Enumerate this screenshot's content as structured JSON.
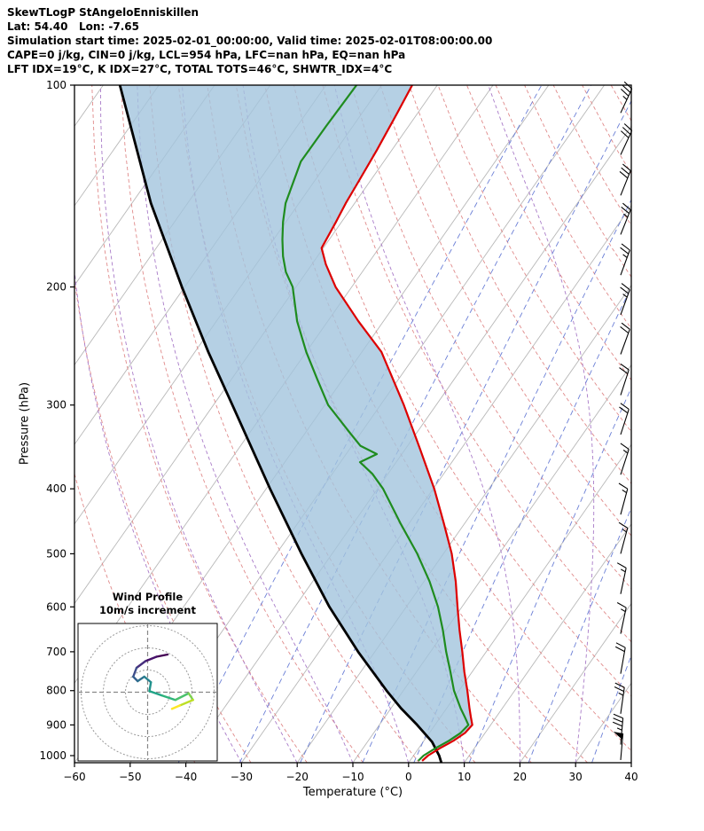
{
  "header": {
    "lines": [
      "SkewTLogP StAngeloEnniskillen",
      "Lat: 54.40   Lon: -7.65",
      "Simulation start time: 2025-02-01_00:00:00, Valid time: 2025-02-01T08:00:00.00",
      "CAPE=0 j/kg, CIN=0 j/kg, LCL=954 hPa, LFC=nan hPa, EQ=nan hPa",
      "LFT IDX=19°C, K IDX=27°C, TOTAL TOTS=46°C, SHWTR_IDX=4°C"
    ]
  },
  "chart_data": {
    "type": "line",
    "subtype": "skewt_logp_sounding",
    "title": "SkewTLogP StAngeloEnniskillen",
    "xlabel": "Temperature (°C)",
    "ylabel": "Pressure (hPa)",
    "xlim": [
      -60,
      40
    ],
    "ylim_hpa": [
      1025,
      100
    ],
    "x_ticks": [
      -60,
      -50,
      -40,
      -30,
      -20,
      -10,
      0,
      10,
      20,
      30,
      40
    ],
    "x_tick_labels": [
      "−60",
      "−50",
      "−40",
      "−30",
      "−20",
      "−10",
      "0",
      "10",
      "20",
      "30",
      "40"
    ],
    "y_ticks": [
      100,
      200,
      300,
      400,
      500,
      600,
      700,
      800,
      900,
      1000
    ],
    "series": [
      {
        "name": "temperature",
        "color": "#dd0000",
        "points_p_t": [
          [
            1018,
            2.2
          ],
          [
            1000,
            2.6
          ],
          [
            975,
            3.8
          ],
          [
            950,
            5.3
          ],
          [
            925,
            6.4
          ],
          [
            900,
            6.7
          ],
          [
            875,
            5.4
          ],
          [
            850,
            4.1
          ],
          [
            800,
            1.5
          ],
          [
            750,
            -1.4
          ],
          [
            700,
            -4.3
          ],
          [
            650,
            -7.5
          ],
          [
            600,
            -10.8
          ],
          [
            550,
            -14.3
          ],
          [
            500,
            -18.5
          ],
          [
            450,
            -23.8
          ],
          [
            400,
            -29.8
          ],
          [
            350,
            -37.2
          ],
          [
            300,
            -45.8
          ],
          [
            250,
            -56.5
          ],
          [
            225,
            -64.5
          ],
          [
            200,
            -72.9
          ],
          [
            185,
            -77.5
          ],
          [
            175,
            -80.3
          ],
          [
            160,
            -81.0
          ],
          [
            150,
            -81.6
          ],
          [
            140,
            -82.0
          ],
          [
            125,
            -82.7
          ],
          [
            110,
            -83.7
          ],
          [
            100,
            -84.5
          ]
        ]
      },
      {
        "name": "dewpoint",
        "color": "#1f8c1f",
        "points_p_t": [
          [
            1018,
            1.5
          ],
          [
            1000,
            1.8
          ],
          [
            975,
            3.0
          ],
          [
            950,
            4.5
          ],
          [
            925,
            5.6
          ],
          [
            900,
            6.0
          ],
          [
            875,
            4.3
          ],
          [
            850,
            2.5
          ],
          [
            800,
            -0.9
          ],
          [
            750,
            -3.9
          ],
          [
            700,
            -7.2
          ],
          [
            650,
            -10.5
          ],
          [
            600,
            -14.3
          ],
          [
            550,
            -19.0
          ],
          [
            500,
            -24.7
          ],
          [
            450,
            -31.6
          ],
          [
            400,
            -39.0
          ],
          [
            380,
            -42.8
          ],
          [
            365,
            -46.5
          ],
          [
            355,
            -44.5
          ],
          [
            345,
            -48.5
          ],
          [
            330,
            -52.0
          ],
          [
            300,
            -59.4
          ],
          [
            275,
            -64.5
          ],
          [
            250,
            -70.0
          ],
          [
            225,
            -75.5
          ],
          [
            200,
            -80.6
          ],
          [
            190,
            -83.7
          ],
          [
            180,
            -86.2
          ],
          [
            170,
            -88.4
          ],
          [
            160,
            -90.5
          ],
          [
            150,
            -92.4
          ],
          [
            130,
            -94.9
          ],
          [
            115,
            -94.8
          ],
          [
            100,
            -94.5
          ]
        ]
      },
      {
        "name": "parcel",
        "color": "#000000",
        "points_p_t": [
          [
            1025,
            5.9
          ],
          [
            1000,
            4.6
          ],
          [
            954,
            1.6
          ],
          [
            900,
            -3.2
          ],
          [
            850,
            -8.2
          ],
          [
            800,
            -13.0
          ],
          [
            700,
            -23.0
          ],
          [
            600,
            -33.8
          ],
          [
            500,
            -45.5
          ],
          [
            400,
            -59.3
          ],
          [
            300,
            -76.6
          ],
          [
            250,
            -87.6
          ],
          [
            200,
            -100.5
          ],
          [
            150,
            -116.6
          ],
          [
            100,
            -137.0
          ]
        ]
      }
    ],
    "shaded_area": {
      "between": [
        "parcel",
        "temperature"
      ],
      "from_hpa": 982,
      "to_hpa": 100,
      "color": "#a2c4dd",
      "opacity": 0.8
    },
    "background": {
      "isotherms": {
        "color": "#b8b8b8",
        "min_c": -150,
        "max_c": 40,
        "step_c": 10
      },
      "dry_adiabats": {
        "color": "#e08a8a",
        "dash": [
          4,
          3
        ],
        "theta_min_c": -40,
        "theta_max_c": 200,
        "step_c": 10
      },
      "moist_adiabats": {
        "color": "#a97bc8",
        "dash": [
          4,
          3
        ],
        "t0_min_c": -30,
        "t0_max_c": 30,
        "step_c": 10
      },
      "mixing_ratio": {
        "color": "#6b7fd6",
        "dash": [
          6,
          4
        ],
        "values_g_kg": [
          0.1,
          0.3,
          0.8,
          2,
          4,
          8,
          16,
          32
        ]
      }
    },
    "winds": [
      {
        "p": 110,
        "speed_kt": 35,
        "dir_deg": 25
      },
      {
        "p": 127,
        "speed_kt": 30,
        "dir_deg": 25
      },
      {
        "p": 146,
        "speed_kt": 30,
        "dir_deg": 22
      },
      {
        "p": 167,
        "speed_kt": 25,
        "dir_deg": 22
      },
      {
        "p": 192,
        "speed_kt": 25,
        "dir_deg": 20
      },
      {
        "p": 220,
        "speed_kt": 25,
        "dir_deg": 20
      },
      {
        "p": 252,
        "speed_kt": 20,
        "dir_deg": 20
      },
      {
        "p": 290,
        "speed_kt": 20,
        "dir_deg": 18
      },
      {
        "p": 332,
        "speed_kt": 20,
        "dir_deg": 18
      },
      {
        "p": 381,
        "speed_kt": 15,
        "dir_deg": 18
      },
      {
        "p": 437,
        "speed_kt": 15,
        "dir_deg": 15
      },
      {
        "p": 500,
        "speed_kt": 15,
        "dir_deg": 15
      },
      {
        "p": 574,
        "speed_kt": 15,
        "dir_deg": 12
      },
      {
        "p": 658,
        "speed_kt": 15,
        "dir_deg": 12
      },
      {
        "p": 755,
        "speed_kt": 20,
        "dir_deg": 10
      },
      {
        "p": 866,
        "speed_kt": 25,
        "dir_deg": 8
      },
      {
        "p": 963,
        "speed_kt": 35,
        "dir_deg": 5
      },
      {
        "p": 1015,
        "speed_kt": 50,
        "dir_deg": 5
      }
    ],
    "hodograph": {
      "title": "Wind Profile",
      "subtitle": "10m/s increment",
      "ring_increment_ms": 10,
      "rings_ms": [
        10,
        20,
        30
      ],
      "points_uv_ms": [
        [
          9.0,
          17.0
        ],
        [
          4.0,
          16.0
        ],
        [
          -1.0,
          14.0
        ],
        [
          -5.0,
          11.0
        ],
        [
          -6.5,
          7.0
        ],
        [
          -4.5,
          5.0
        ],
        [
          -1.5,
          7.0
        ],
        [
          1.5,
          4.5
        ],
        [
          0.8,
          0.5
        ],
        [
          6.5,
          -1.5
        ],
        [
          12.5,
          -3.5
        ],
        [
          18.5,
          -0.5
        ],
        [
          20.5,
          -3.5
        ],
        [
          14.5,
          -6.0
        ],
        [
          11.0,
          -7.5
        ]
      ],
      "segment_colors": [
        "#440154",
        "#47126b",
        "#472f7d",
        "#3e4c8a",
        "#355e8d",
        "#2d708e",
        "#26818e",
        "#21928c",
        "#20a386",
        "#2eb37c",
        "#4ac16d",
        "#7ed34f",
        "#bddf26",
        "#fde725"
      ]
    }
  }
}
